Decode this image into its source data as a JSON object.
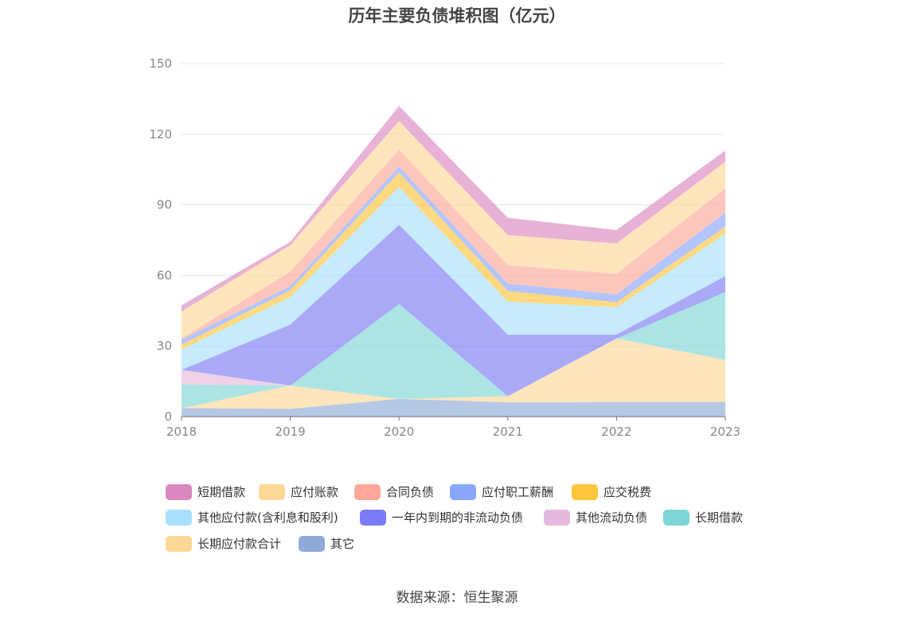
{
  "chart_data": {
    "type": "area",
    "stacked": true,
    "title": "历年主要负债堆积图（亿元）",
    "xlabel": "",
    "ylabel": "",
    "ylim": [
      0,
      150
    ],
    "yticks": [
      "0",
      "30",
      "60",
      "90",
      "120",
      "150"
    ],
    "categories": [
      "2018",
      "2019",
      "2020",
      "2021",
      "2022",
      "2023"
    ],
    "grid": true,
    "legend_position": "bottom",
    "series": [
      {
        "name": "其它",
        "color": "#8eaad8",
        "values": [
          3.6,
          3.3,
          7.5,
          6.1,
          6.2,
          6.2
        ]
      },
      {
        "name": "长期应付款合计",
        "color": "#fdd796",
        "values": [
          0,
          9.9,
          0,
          2.6,
          27.0,
          17.9
        ]
      },
      {
        "name": "长期借款",
        "color": "#7fd6d6",
        "values": [
          10.1,
          0,
          40.4,
          0,
          0,
          28.8
        ]
      },
      {
        "name": "其他流动负债",
        "color": "#e6b8dc",
        "values": [
          6.2,
          0,
          0,
          0,
          0,
          0
        ]
      },
      {
        "name": "一年内到期的非流动负债",
        "color": "#7b7bf5",
        "values": [
          0,
          25.9,
          33.6,
          26.1,
          1.7,
          6.8
        ]
      },
      {
        "name": "其他应付款(含利息和股利)",
        "color": "#a8e0fb",
        "values": [
          8.7,
          11.6,
          16.1,
          14.1,
          11.5,
          18.0
        ]
      },
      {
        "name": "应交税费",
        "color": "#ffc53d",
        "values": [
          2.0,
          3.0,
          6.2,
          4.5,
          2.2,
          3.0
        ]
      },
      {
        "name": "应付职工薪酬",
        "color": "#8aa6fb",
        "values": [
          2.1,
          1.7,
          2.5,
          3.1,
          3.4,
          6.0
        ]
      },
      {
        "name": "合同负债",
        "color": "#fca79a",
        "values": [
          0.5,
          6.2,
          7.1,
          7.9,
          8.7,
          10.4
        ]
      },
      {
        "name": "应付账款",
        "color": "#fdd796",
        "values": [
          11.5,
          11.3,
          12.2,
          12.7,
          12.9,
          11.2
        ]
      },
      {
        "name": "短期借款",
        "color": "#db88c0",
        "values": [
          2.6,
          1.4,
          6.4,
          7.4,
          5.7,
          4.8
        ]
      }
    ],
    "legend_order": [
      "短期借款",
      "应付账款",
      "合同负债",
      "应付职工薪酬",
      "应交税费",
      "其他应付款(含利息和股利)",
      "一年内到期的非流动负债",
      "其他流动负债",
      "长期借款",
      "长期应付款合计",
      "其它"
    ]
  },
  "source": "数据来源：恒生聚源"
}
